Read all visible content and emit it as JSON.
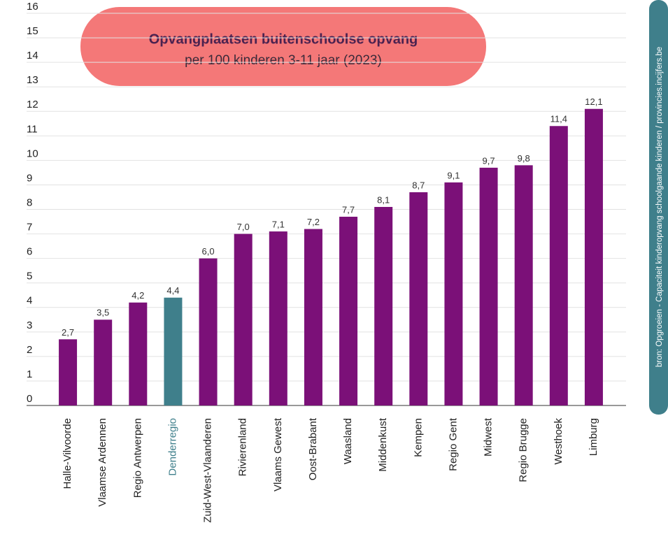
{
  "chart_data": {
    "type": "bar",
    "title": "Opvangplaatsen buitenschoolse opvang",
    "subtitle": "per 100 kinderen 3-11 jaar (2023)",
    "source": "bron: Opgroeien - Capaciteit kinderopvang schoolgaande kinderen / provincies.incijfers.be",
    "categories": [
      "Halle-Vilvoorde",
      "Vlaamse Ardennen",
      "Regio Antwerpen",
      "Denderregio",
      "Zuid-West-Vlaanderen",
      "Rivierenland",
      "Vlaams Gewest",
      "Oost-Brabant",
      "Waasland",
      "Middenkust",
      "Kempen",
      "Regio Gent",
      "Midwest",
      "Regio Brugge",
      "Westhoek",
      "Limburg"
    ],
    "values": [
      2.7,
      3.5,
      4.2,
      4.4,
      6.0,
      7.0,
      7.1,
      7.2,
      7.7,
      8.1,
      8.7,
      9.1,
      9.7,
      9.8,
      11.4,
      12.1
    ],
    "value_labels": [
      "2,7",
      "3,5",
      "4,2",
      "4,4",
      "6,0",
      "7,0",
      "7,1",
      "7,2",
      "7,7",
      "8,1",
      "8,7",
      "9,1",
      "9,7",
      "9,8",
      "11,4",
      "12,1"
    ],
    "colors": [
      "#7b1078",
      "#7b1078",
      "#7b1078",
      "#3f7f8b",
      "#7b1078",
      "#7b1078",
      "#7b1078",
      "#7b1078",
      "#7b1078",
      "#7b1078",
      "#7b1078",
      "#7b1078",
      "#7b1078",
      "#7b1078",
      "#7b1078",
      "#7b1078"
    ],
    "ylim": [
      0,
      16
    ],
    "yticks": [
      0,
      1,
      2,
      3,
      4,
      5,
      6,
      7,
      8,
      9,
      10,
      11,
      12,
      13,
      14,
      15,
      16
    ],
    "grid": true
  }
}
